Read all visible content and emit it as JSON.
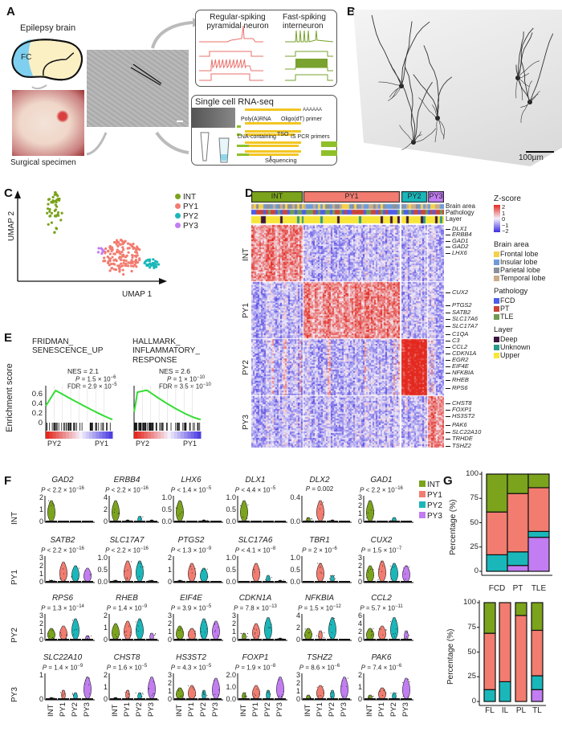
{
  "panel_labels": {
    "a": "A",
    "b": "B",
    "c": "C",
    "d": "D",
    "e": "E",
    "f": "F",
    "g": "G"
  },
  "colors": {
    "INT": "#7ba31c",
    "PY1": "#f27c70",
    "PY2": "#1ab7ba",
    "PY3": "#c27df2",
    "trace_pyramidal": "#e8706a",
    "trace_interneuron": "#79a22e",
    "gsea_curve": "#33dd33"
  },
  "panel_a": {
    "brain_title": "Epilepsy brain",
    "region_label": "FC",
    "specimen_caption": "Surgical specimen",
    "ephys": {
      "left_title_1": "Regular-spiking",
      "left_title_2": "pyramidal neuron",
      "right_title_1": "Fast-spiking",
      "right_title_2": "interneuron"
    },
    "rnaseq": {
      "title": "Single cell RNA-seq",
      "polya": "Poly(A)RNA",
      "oligo": "Oligo(dT) primer",
      "lna": "LNA-containing",
      "tso": "TSO",
      "is_pcr": "IS PCR primers",
      "sequencing": "Sequencing",
      "tail": "AAAAAA"
    }
  },
  "panel_b": {
    "scale_bar": "100µm"
  },
  "panel_c": {
    "xlabel": "UMAP 1",
    "ylabel": "UMAP 2",
    "legend": [
      {
        "label": "INT",
        "color": "#7ba31c"
      },
      {
        "label": "PY1",
        "color": "#f27c70"
      },
      {
        "label": "PY2",
        "color": "#1ab7ba"
      },
      {
        "label": "PY3",
        "color": "#c27df2"
      }
    ]
  },
  "panel_d": {
    "clusters": [
      "INT",
      "PY1",
      "PY2",
      "PY3"
    ],
    "annotation_tracks": [
      "Brain area",
      "Pathology",
      "Layer"
    ],
    "zscore": {
      "title": "Z-score",
      "ticks": [
        "2",
        "1",
        "0",
        "−1",
        "−2"
      ],
      "low": "#3b2ce0",
      "mid": "#f4f0fb",
      "high": "#e3291f"
    },
    "legends": [
      {
        "title": "Brain area",
        "items": [
          {
            "label": "Frontal lobe",
            "color": "#f5d04a"
          },
          {
            "label": "Insular lobe",
            "color": "#6f9bd8"
          },
          {
            "label": "Parietal lobe",
            "color": "#8b9198"
          },
          {
            "label": "Temporal lobe",
            "color": "#c9ad8a"
          }
        ]
      },
      {
        "title": "Pathology",
        "items": [
          {
            "label": "FCD",
            "color": "#4b5ee8"
          },
          {
            "label": "PT",
            "color": "#c8453a"
          },
          {
            "label": "TLE",
            "color": "#6f9a55"
          }
        ]
      },
      {
        "title": "Layer",
        "items": [
          {
            "label": "Deep",
            "color": "#3b1640"
          },
          {
            "label": "Unknown",
            "color": "#2a9a8a"
          },
          {
            "label": "Upper",
            "color": "#f7e63a"
          }
        ]
      }
    ],
    "genes": {
      "INT": [
        "DLX1",
        "ERBB4",
        "GAD1",
        "GAD2",
        "LHX6"
      ],
      "PY1": [
        "CUX2",
        "PTGS2",
        "SATB2",
        "SLC17A6",
        "SLC17A7"
      ],
      "PY2": [
        "C1QA",
        "C3",
        "CCL2",
        "CDKN1A",
        "EGR2",
        "EIF4E",
        "NFKBIA",
        "RHEB",
        "RPS6"
      ],
      "PY3": [
        "CHST8",
        "FOXP1",
        "HS3ST2",
        "PAK6",
        "SLC22A10",
        "TRHDE",
        "TSHZ2"
      ]
    }
  },
  "panel_e": {
    "ylabel": "Enrichment score",
    "yticks": [
      "0.6",
      "0.4",
      "0.2",
      "0"
    ],
    "left_group": "PY2",
    "right_group": "PY1",
    "sets": [
      {
        "title_1": "FRIDMAN_",
        "title_2": "SENESCENCE_UP",
        "title_3": "",
        "nes": "NES = 2.1",
        "p_mant": "1.5",
        "p_exp": "−6",
        "fdr_mant": "2.9",
        "fdr_exp": "−5"
      },
      {
        "title_1": "HALLMARK_",
        "title_2": "INFLAMMATORY_",
        "title_3": "RESPONSE",
        "nes": "NES = 2.6",
        "p_mant": "1",
        "p_exp": "−10",
        "fdr_mant": "3.5",
        "fdr_exp": "−10"
      }
    ]
  },
  "panel_f": {
    "groups": [
      "INT",
      "PY1",
      "PY2",
      "PY3"
    ],
    "legend": [
      {
        "label": "INT",
        "color": "#7ba31c"
      },
      {
        "label": "PY1",
        "color": "#f27c70"
      },
      {
        "label": "PY2",
        "color": "#1ab7ba"
      },
      {
        "label": "PY3",
        "color": "#c27df2"
      }
    ],
    "rows": [
      {
        "label": "INT",
        "genes": [
          {
            "gene": "GAD2",
            "op": "<",
            "mant": "2.2",
            "exp": "−16",
            "yticks": [
              "0",
              "1",
              "2"
            ]
          },
          {
            "gene": "ERBB4",
            "op": "<",
            "mant": "2.2",
            "exp": "−16",
            "yticks": [
              "0",
              "2",
              "4"
            ]
          },
          {
            "gene": "LHX6",
            "op": "<",
            "mant": "1.4",
            "exp": "−5",
            "yticks": [
              "0.0",
              "0.5",
              "1.0"
            ]
          },
          {
            "gene": "DLX1",
            "op": "<",
            "mant": "4.4",
            "exp": "−5",
            "yticks": [
              "0.0",
              "0.5",
              "1.0"
            ]
          },
          {
            "gene": "DLX2",
            "op": "=",
            "mant": "0.002",
            "exp": null,
            "yticks": [
              "0.0",
              "0.4"
            ]
          },
          {
            "gene": "GAD1",
            "op": "<",
            "mant": "2.2",
            "exp": "−16",
            "yticks": [
              "0",
              "1",
              "2",
              "3"
            ]
          }
        ]
      },
      {
        "label": "PY1",
        "genes": [
          {
            "gene": "SATB2",
            "op": "<",
            "mant": "2.2",
            "exp": "−16",
            "yticks": [
              "0",
              "1",
              "2",
              "3"
            ]
          },
          {
            "gene": "SLC17A7",
            "op": "<",
            "mant": "2.2",
            "exp": "−16",
            "yticks": [
              "0.0",
              "0.5",
              "1.0"
            ]
          },
          {
            "gene": "PTGS2",
            "op": "<",
            "mant": "1.3",
            "exp": "−9",
            "yticks": [
              "0",
              "1",
              "2"
            ]
          },
          {
            "gene": "SLC17A6",
            "op": "<",
            "mant": "4.1",
            "exp": "−8",
            "yticks": [
              "0.0",
              "0.5",
              "1.0"
            ]
          },
          {
            "gene": "TBR1",
            "op": "=",
            "mant": "2",
            "exp": "−6",
            "yticks": [
              "0.0",
              "0.5",
              "1.0"
            ]
          },
          {
            "gene": "CUX2",
            "op": "=",
            "mant": "1.5",
            "exp": "−7",
            "yticks": [
              "0",
              "1",
              "2",
              "3"
            ]
          }
        ]
      },
      {
        "label": "PY2",
        "genes": [
          {
            "gene": "RPS6",
            "op": "=",
            "mant": "1.3",
            "exp": "−14",
            "yticks": [
              "0",
              "1",
              "2",
              "3"
            ]
          },
          {
            "gene": "RHEB",
            "op": "=",
            "mant": "1.4",
            "exp": "−9",
            "yticks": [
              "0",
              "1",
              "2"
            ]
          },
          {
            "gene": "EIF4E",
            "op": "=",
            "mant": "3.9",
            "exp": "−5",
            "yticks": [
              "0",
              "1",
              "2",
              "3"
            ]
          },
          {
            "gene": "CDKN1A",
            "op": "=",
            "mant": "7.8",
            "exp": "−13",
            "yticks": [
              "0",
              "1",
              "2",
              "3"
            ]
          },
          {
            "gene": "NFKBIA",
            "op": "=",
            "mant": "1.5",
            "exp": "−12",
            "yticks": [
              "0",
              "2",
              "4"
            ]
          },
          {
            "gene": "CCL2",
            "op": "=",
            "mant": "5.7",
            "exp": "−11",
            "yticks": [
              "0",
              "2",
              "4",
              "6"
            ]
          }
        ]
      },
      {
        "label": "PY3",
        "genes": [
          {
            "gene": "SLC22A10",
            "op": "=",
            "mant": "1.4",
            "exp": "−9",
            "yticks": [
              "0",
              "1"
            ]
          },
          {
            "gene": "CHST8",
            "op": "=",
            "mant": "1.6",
            "exp": "−5",
            "yticks": [
              "0",
              "1",
              "2"
            ]
          },
          {
            "gene": "HS3ST2",
            "op": "=",
            "mant": "4.3",
            "exp": "−5",
            "yticks": [
              "0",
              "1",
              "2",
              "3"
            ]
          },
          {
            "gene": "FOXP1",
            "op": "=",
            "mant": "1.9",
            "exp": "−8",
            "yticks": [
              "0.0",
              "1.0",
              "2.0"
            ]
          },
          {
            "gene": "TSHZ2",
            "op": "=",
            "mant": "8.6",
            "exp": "−6",
            "yticks": [
              "0",
              "1",
              "2",
              "3"
            ]
          },
          {
            "gene": "PAK6",
            "op": "=",
            "mant": "7.4",
            "exp": "−6",
            "yticks": [
              "0",
              "1",
              "2"
            ]
          }
        ]
      }
    ]
  },
  "chart_data": [
    {
      "type": "bar",
      "stacked": true,
      "categories": [
        "FCD",
        "PT",
        "TLE"
      ],
      "xlabel": "",
      "ylabel": "Percentage (%)",
      "ylim": [
        0,
        100
      ],
      "yticks": [
        "0",
        "25",
        "50",
        "75",
        "100"
      ],
      "series": [
        {
          "name": "PY3",
          "values": [
            0,
            6,
            35
          ]
        },
        {
          "name": "PY2",
          "values": [
            17,
            14,
            6
          ]
        },
        {
          "name": "PY1",
          "values": [
            44,
            60,
            45
          ]
        },
        {
          "name": "INT",
          "values": [
            39,
            20,
            14
          ]
        }
      ]
    },
    {
      "type": "bar",
      "stacked": true,
      "categories": [
        "FL",
        "IL",
        "PL",
        "TL"
      ],
      "xlabel": "",
      "ylabel": "Percentage (%)",
      "ylim": [
        0,
        100
      ],
      "yticks": [
        "0",
        "25",
        "50",
        "75",
        "100"
      ],
      "series": [
        {
          "name": "PY3",
          "values": [
            0,
            0,
            0,
            12
          ]
        },
        {
          "name": "PY2",
          "values": [
            12,
            20,
            0,
            14
          ]
        },
        {
          "name": "PY1",
          "values": [
            57,
            80,
            87,
            46
          ]
        },
        {
          "name": "INT",
          "values": [
            31,
            0,
            13,
            28
          ]
        }
      ]
    }
  ]
}
